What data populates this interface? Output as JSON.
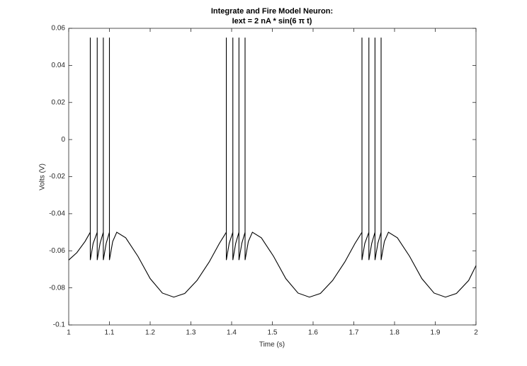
{
  "chart_data": {
    "type": "line",
    "title": "Integrate and Fire Model Neuron:",
    "subtitle": "Iext = 2 nA * sin(6 π t)",
    "x_label": "Time (s)",
    "y_label": "Volts (V)",
    "color": "#000000",
    "xlim": [
      1,
      2
    ],
    "xticks": [
      1,
      1.1,
      1.2,
      1.3,
      1.4,
      1.5,
      1.6,
      1.7,
      1.8,
      1.9,
      2
    ],
    "ylim": [
      -0.1,
      0.06
    ],
    "yticks": [
      -0.1,
      -0.08,
      -0.06,
      -0.04,
      -0.02,
      0,
      0.02,
      0.04,
      0.06
    ],
    "x": [
      1.0,
      1.02,
      1.04,
      1.053,
      1.053,
      1.053,
      1.06,
      1.07,
      1.07,
      1.07,
      1.077,
      1.085,
      1.085,
      1.085,
      1.092,
      1.1,
      1.1,
      1.1,
      1.108,
      1.118,
      1.14,
      1.17,
      1.2,
      1.23,
      1.258,
      1.285,
      1.315,
      1.345,
      1.37,
      1.387,
      1.387,
      1.387,
      1.394,
      1.403,
      1.403,
      1.403,
      1.41,
      1.418,
      1.418,
      1.418,
      1.425,
      1.433,
      1.433,
      1.433,
      1.441,
      1.451,
      1.473,
      1.503,
      1.533,
      1.563,
      1.591,
      1.618,
      1.648,
      1.678,
      1.703,
      1.72,
      1.72,
      1.72,
      1.727,
      1.737,
      1.737,
      1.737,
      1.744,
      1.752,
      1.752,
      1.752,
      1.759,
      1.767,
      1.767,
      1.767,
      1.775,
      1.785,
      1.807,
      1.837,
      1.867,
      1.897,
      1.925,
      1.952,
      1.982,
      2.0
    ],
    "values": [
      -0.065,
      -0.061,
      -0.055,
      -0.05,
      0.055,
      -0.065,
      -0.056,
      -0.05,
      0.055,
      -0.065,
      -0.056,
      -0.05,
      0.055,
      -0.065,
      -0.056,
      -0.05,
      0.055,
      -0.065,
      -0.055,
      -0.05,
      -0.053,
      -0.063,
      -0.075,
      -0.0828,
      -0.085,
      -0.083,
      -0.076,
      -0.066,
      -0.056,
      -0.05,
      0.055,
      -0.065,
      -0.056,
      -0.05,
      0.055,
      -0.065,
      -0.056,
      -0.05,
      0.055,
      -0.065,
      -0.056,
      -0.05,
      0.055,
      -0.065,
      -0.055,
      -0.05,
      -0.053,
      -0.063,
      -0.075,
      -0.0828,
      -0.085,
      -0.083,
      -0.076,
      -0.066,
      -0.056,
      -0.05,
      0.055,
      -0.065,
      -0.056,
      -0.05,
      0.055,
      -0.065,
      -0.056,
      -0.05,
      0.055,
      -0.065,
      -0.056,
      -0.05,
      0.055,
      -0.065,
      -0.055,
      -0.05,
      -0.053,
      -0.063,
      -0.075,
      -0.0828,
      -0.085,
      -0.083,
      -0.076,
      -0.068
    ]
  }
}
